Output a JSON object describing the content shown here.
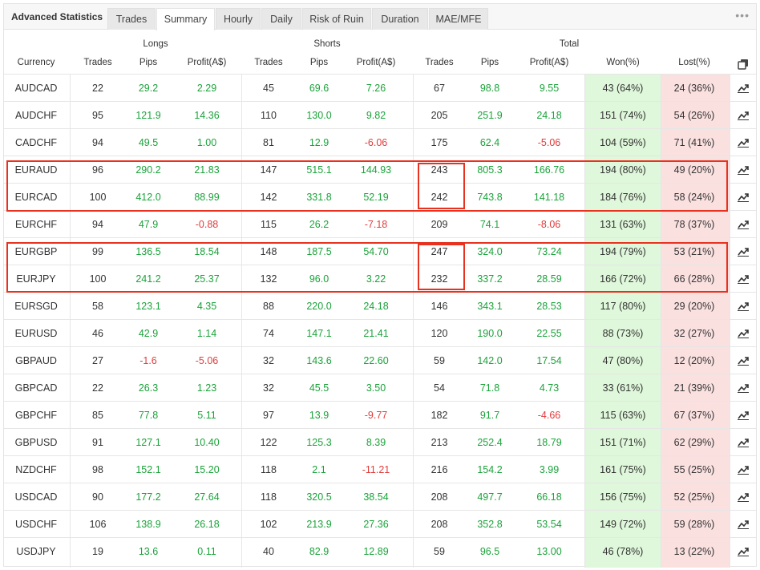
{
  "panel": {
    "title": "Advanced Statistics",
    "more_icon": "ellipsis-icon"
  },
  "tabs": [
    {
      "label": "Trades"
    },
    {
      "label": "Summary",
      "active": true
    },
    {
      "label": "Hourly"
    },
    {
      "label": "Daily"
    },
    {
      "label": "Risk of Ruin"
    },
    {
      "label": "Duration"
    },
    {
      "label": "MAE/MFE"
    }
  ],
  "groups": {
    "longs": "Longs",
    "shorts": "Shorts",
    "total": "Total"
  },
  "columns": [
    "Currency",
    "Trades",
    "Pips",
    "Profit(A$)",
    "Trades",
    "Pips",
    "Profit(A$)",
    "Trades",
    "Pips",
    "Profit(A$)",
    "Won(%)",
    "Lost(%)"
  ],
  "colors": {
    "positive": "#1aa33a",
    "negative": "#e13c3c",
    "won_bg": "#dff7da",
    "lost_bg": "#fbe0e0",
    "highlight": "#e8321f"
  },
  "rows": [
    [
      "AUDCAD",
      "22",
      "29.2",
      "2.29",
      "45",
      "69.6",
      "7.26",
      "67",
      "98.8",
      "9.55",
      "43 (64%)",
      "24 (36%)"
    ],
    [
      "AUDCHF",
      "95",
      "121.9",
      "14.36",
      "110",
      "130.0",
      "9.82",
      "205",
      "251.9",
      "24.18",
      "151 (74%)",
      "54 (26%)"
    ],
    [
      "CADCHF",
      "94",
      "49.5",
      "1.00",
      "81",
      "12.9",
      "-6.06",
      "175",
      "62.4",
      "-5.06",
      "104 (59%)",
      "71 (41%)"
    ],
    [
      "EURAUD",
      "96",
      "290.2",
      "21.83",
      "147",
      "515.1",
      "144.93",
      "243",
      "805.3",
      "166.76",
      "194 (80%)",
      "49 (20%)"
    ],
    [
      "EURCAD",
      "100",
      "412.0",
      "88.99",
      "142",
      "331.8",
      "52.19",
      "242",
      "743.8",
      "141.18",
      "184 (76%)",
      "58 (24%)"
    ],
    [
      "EURCHF",
      "94",
      "47.9",
      "-0.88",
      "115",
      "26.2",
      "-7.18",
      "209",
      "74.1",
      "-8.06",
      "131 (63%)",
      "78 (37%)"
    ],
    [
      "EURGBP",
      "99",
      "136.5",
      "18.54",
      "148",
      "187.5",
      "54.70",
      "247",
      "324.0",
      "73.24",
      "194 (79%)",
      "53 (21%)"
    ],
    [
      "EURJPY",
      "100",
      "241.2",
      "25.37",
      "132",
      "96.0",
      "3.22",
      "232",
      "337.2",
      "28.59",
      "166 (72%)",
      "66 (28%)"
    ],
    [
      "EURSGD",
      "58",
      "123.1",
      "4.35",
      "88",
      "220.0",
      "24.18",
      "146",
      "343.1",
      "28.53",
      "117 (80%)",
      "29 (20%)"
    ],
    [
      "EURUSD",
      "46",
      "42.9",
      "1.14",
      "74",
      "147.1",
      "21.41",
      "120",
      "190.0",
      "22.55",
      "88 (73%)",
      "32 (27%)"
    ],
    [
      "GBPAUD",
      "27",
      "-1.6",
      "-5.06",
      "32",
      "143.6",
      "22.60",
      "59",
      "142.0",
      "17.54",
      "47 (80%)",
      "12 (20%)"
    ],
    [
      "GBPCAD",
      "22",
      "26.3",
      "1.23",
      "32",
      "45.5",
      "3.50",
      "54",
      "71.8",
      "4.73",
      "33 (61%)",
      "21 (39%)"
    ],
    [
      "GBPCHF",
      "85",
      "77.8",
      "5.11",
      "97",
      "13.9",
      "-9.77",
      "182",
      "91.7",
      "-4.66",
      "115 (63%)",
      "67 (37%)"
    ],
    [
      "GBPUSD",
      "91",
      "127.1",
      "10.40",
      "122",
      "125.3",
      "8.39",
      "213",
      "252.4",
      "18.79",
      "151 (71%)",
      "62 (29%)"
    ],
    [
      "NZDCHF",
      "98",
      "152.1",
      "15.20",
      "118",
      "2.1",
      "-11.21",
      "216",
      "154.2",
      "3.99",
      "161 (75%)",
      "55 (25%)"
    ],
    [
      "USDCAD",
      "90",
      "177.2",
      "27.64",
      "118",
      "320.5",
      "38.54",
      "208",
      "497.7",
      "66.18",
      "156 (75%)",
      "52 (25%)"
    ],
    [
      "USDCHF",
      "106",
      "138.9",
      "26.18",
      "102",
      "213.9",
      "27.36",
      "208",
      "352.8",
      "53.54",
      "149 (72%)",
      "59 (28%)"
    ],
    [
      "USDJPY",
      "19",
      "13.6",
      "0.11",
      "40",
      "82.9",
      "12.89",
      "59",
      "96.5",
      "13.00",
      "46 (78%)",
      "13 (22%)"
    ]
  ]
}
